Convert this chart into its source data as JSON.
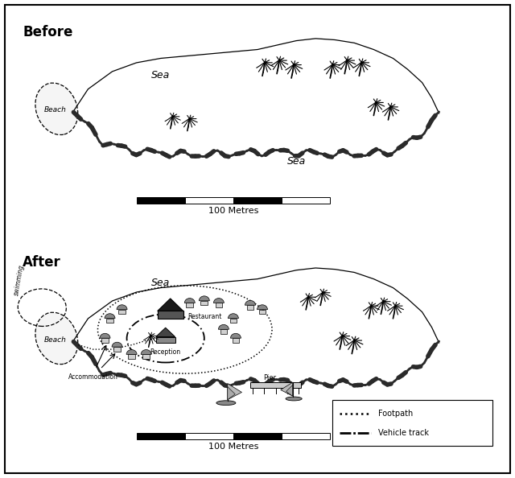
{
  "bg_color": "#ffffff",
  "fig_width": 6.4,
  "fig_height": 5.94,
  "before_label": "Before",
  "after_label": "After",
  "sea_label_before_1": "Sea",
  "sea_label_before_2": "Sea",
  "sea_label_after": "Sea",
  "beach_label": "Beach",
  "scale_label": "100 Metres",
  "swimming_label": "swimming",
  "restaurant_label": "Restaurant",
  "reception_label": "Reception",
  "pier_label": "Pier",
  "accommodation_label": "Accommodation",
  "footpath_label": "Footpath",
  "vehicle_track_label": "Vehicle track"
}
